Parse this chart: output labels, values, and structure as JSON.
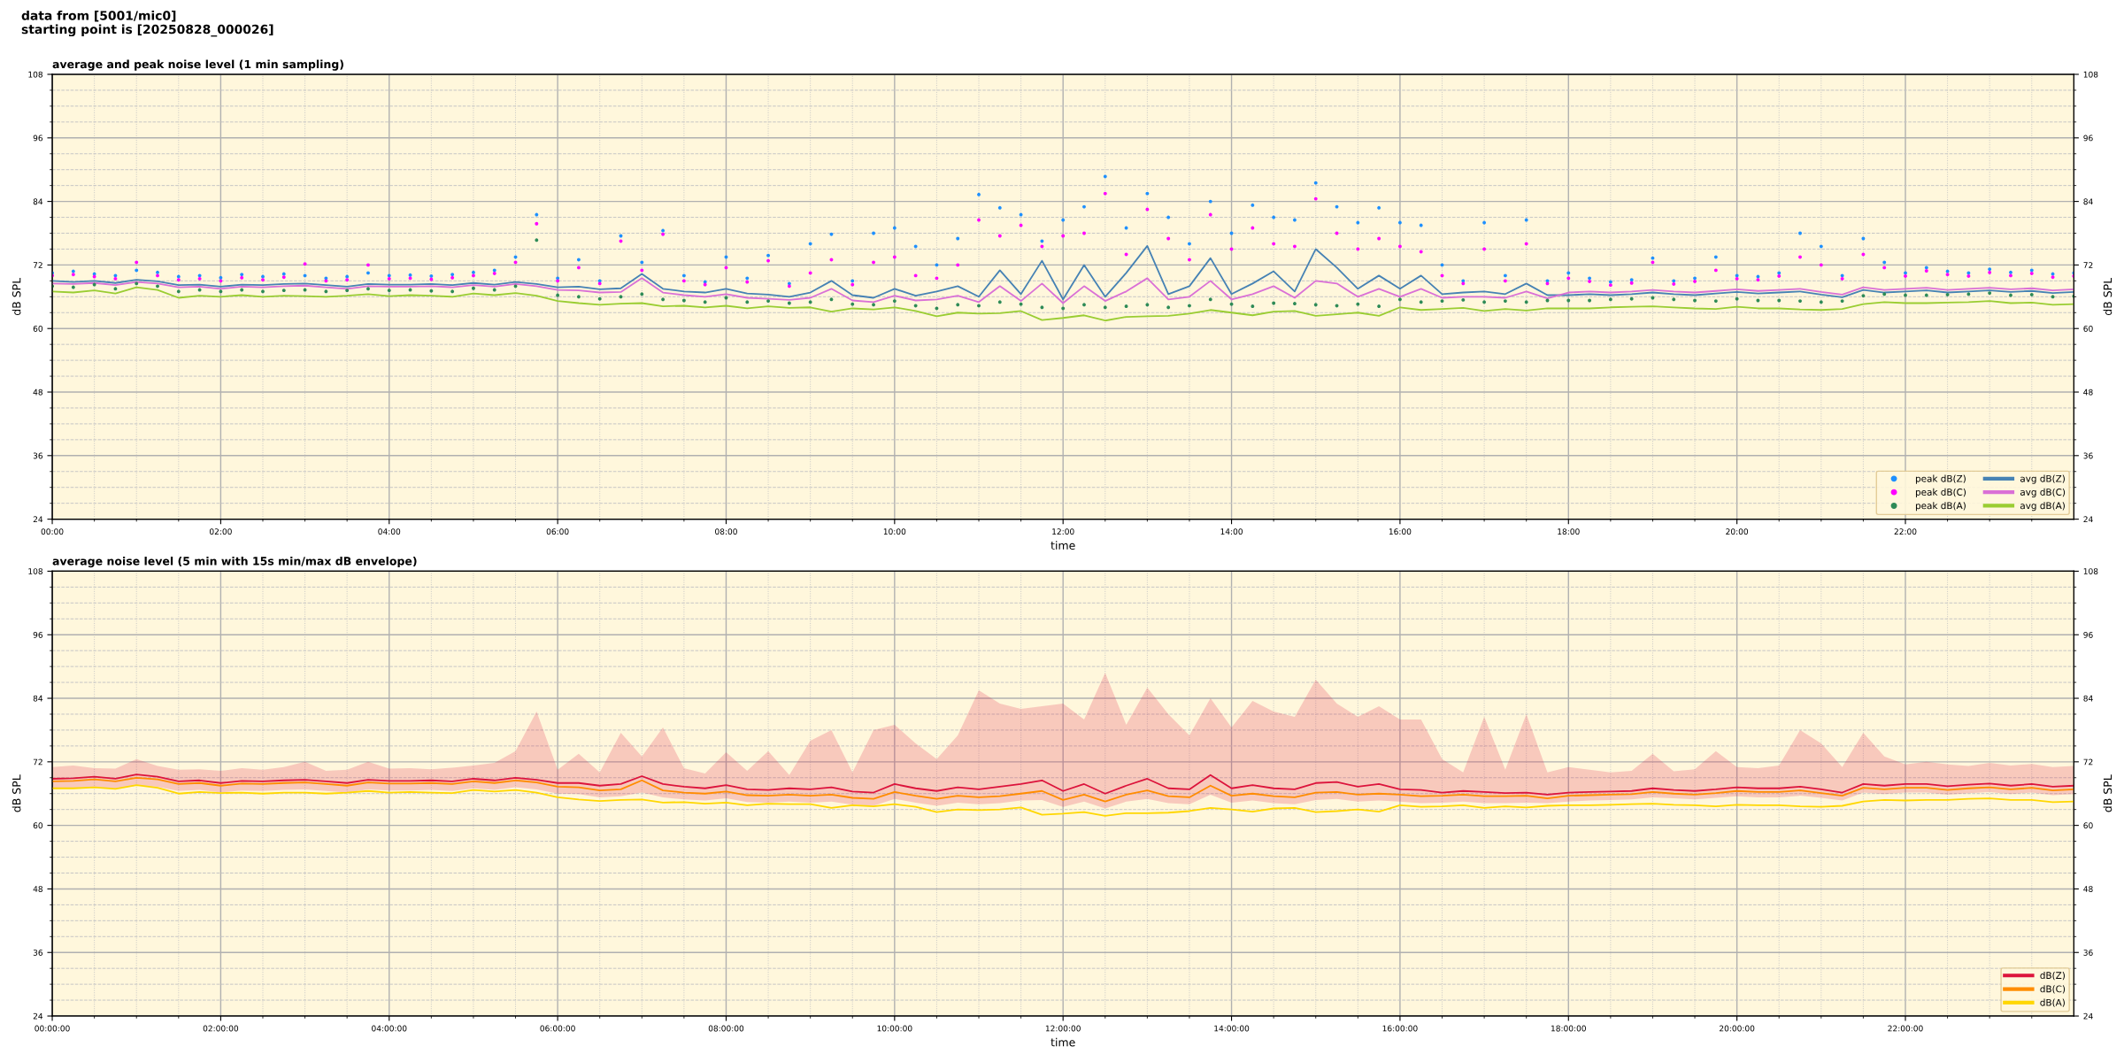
{
  "chart_data": [
    {
      "type": "line",
      "title": "average and peak noise level (1 min sampling)",
      "annotations": [
        "data from [5001/mic0]\nstarting point is [20250828_000026]"
      ],
      "xlabel": "time",
      "ylabel": "dB SPL",
      "y2label": "dB SPL",
      "x": [
        0,
        0.25,
        0.5,
        0.75,
        1,
        1.25,
        1.5,
        1.75,
        2,
        2.25,
        2.5,
        2.75,
        3,
        3.25,
        3.5,
        3.75,
        4,
        4.25,
        4.5,
        4.75,
        5,
        5.25,
        5.5,
        5.75,
        6,
        6.25,
        6.5,
        6.75,
        7,
        7.25,
        7.5,
        7.75,
        8,
        8.25,
        8.5,
        8.75,
        9,
        9.25,
        9.5,
        9.75,
        10,
        10.25,
        10.5,
        10.75,
        11,
        11.25,
        11.5,
        11.75,
        12,
        12.25,
        12.5,
        12.75,
        13,
        13.25,
        13.5,
        13.75,
        14,
        14.25,
        14.5,
        14.75,
        15,
        15.25,
        15.5,
        15.75,
        16,
        16.25,
        16.5,
        16.75,
        17,
        17.25,
        17.5,
        17.75,
        18,
        18.25,
        18.5,
        18.75,
        19,
        19.25,
        19.5,
        19.75,
        20,
        20.25,
        20.5,
        20.75,
        21,
        21.25,
        21.5,
        21.75,
        22,
        22.25,
        22.5,
        22.75,
        23,
        23.25,
        23.5,
        23.75,
        24
      ],
      "xlim": [
        0,
        24
      ],
      "xticks": [
        {
          "value": 0,
          "label": "00:00"
        },
        {
          "value": 0.5,
          "label": null
        },
        {
          "value": 1,
          "label": null
        },
        {
          "value": 1.5,
          "label": null
        },
        {
          "value": 2,
          "label": "02:00"
        },
        {
          "value": 2.5,
          "label": null
        },
        {
          "value": 3,
          "label": null
        },
        {
          "value": 3.5,
          "label": null
        },
        {
          "value": 4,
          "label": "04:00"
        },
        {
          "value": 4.5,
          "label": null
        },
        {
          "value": 5,
          "label": null
        },
        {
          "value": 5.5,
          "label": null
        },
        {
          "value": 6,
          "label": "06:00"
        },
        {
          "value": 6.5,
          "label": null
        },
        {
          "value": 7,
          "label": null
        },
        {
          "value": 7.5,
          "label": null
        },
        {
          "value": 8,
          "label": "08:00"
        },
        {
          "value": 8.5,
          "label": null
        },
        {
          "value": 9,
          "label": null
        },
        {
          "value": 9.5,
          "label": null
        },
        {
          "value": 10,
          "label": "10:00"
        },
        {
          "value": 10.5,
          "label": null
        },
        {
          "value": 11,
          "label": null
        },
        {
          "value": 11.5,
          "label": null
        },
        {
          "value": 12,
          "label": "12:00"
        },
        {
          "value": 12.5,
          "label": null
        },
        {
          "value": 13,
          "label": null
        },
        {
          "value": 13.5,
          "label": null
        },
        {
          "value": 14,
          "label": "14:00"
        },
        {
          "value": 14.5,
          "label": null
        },
        {
          "value": 15,
          "label": null
        },
        {
          "value": 15.5,
          "label": null
        },
        {
          "value": 16,
          "label": "16:00"
        },
        {
          "value": 16.5,
          "label": null
        },
        {
          "value": 17,
          "label": null
        },
        {
          "value": 17.5,
          "label": null
        },
        {
          "value": 18,
          "label": "18:00"
        },
        {
          "value": 18.5,
          "label": null
        },
        {
          "value": 19,
          "label": null
        },
        {
          "value": 19.5,
          "label": null
        },
        {
          "value": 20,
          "label": "20:00"
        },
        {
          "value": 20.5,
          "label": null
        },
        {
          "value": 21,
          "label": null
        },
        {
          "value": 21.5,
          "label": null
        },
        {
          "value": 22,
          "label": "22:00"
        },
        {
          "value": 22.5,
          "label": null
        },
        {
          "value": 23,
          "label": null
        },
        {
          "value": 23.5,
          "label": null
        }
      ],
      "ylim": [
        24,
        108
      ],
      "yticks": [
        24,
        {
          "value": 27,
          "label": null
        },
        {
          "value": 30,
          "label": null
        },
        {
          "value": 33,
          "label": null
        },
        36,
        {
          "value": 39,
          "label": null
        },
        {
          "value": 42,
          "label": null
        },
        {
          "value": 45,
          "label": null
        },
        48,
        {
          "value": 51,
          "label": null
        },
        {
          "value": 54,
          "label": null
        },
        {
          "value": 57,
          "label": null
        },
        60,
        {
          "value": 63,
          "label": null
        },
        {
          "value": 66,
          "label": null
        },
        {
          "value": 69,
          "label": null
        },
        72,
        {
          "value": 75,
          "label": null
        },
        {
          "value": 78,
          "label": null
        },
        {
          "value": 81,
          "label": null
        },
        84,
        {
          "value": 87,
          "label": null
        },
        {
          "value": 90,
          "label": null
        },
        {
          "value": 93,
          "label": null
        },
        96,
        {
          "value": 99,
          "label": null
        },
        {
          "value": 102,
          "label": null
        },
        {
          "value": 105,
          "label": null
        },
        108
      ],
      "y2lim": [
        24,
        108
      ],
      "y2ticks": [
        24,
        {
          "value": 27,
          "label": null
        },
        {
          "value": 30,
          "label": null
        },
        {
          "value": 33,
          "label": null
        },
        36,
        {
          "value": 39,
          "label": null
        },
        {
          "value": 42,
          "label": null
        },
        {
          "value": 45,
          "label": null
        },
        48,
        {
          "value": 51,
          "label": null
        },
        {
          "value": 54,
          "label": null
        },
        {
          "value": 57,
          "label": null
        },
        60,
        {
          "value": 63,
          "label": null
        },
        {
          "value": 66,
          "label": null
        },
        {
          "value": 69,
          "label": null
        },
        72,
        {
          "value": 75,
          "label": null
        },
        {
          "value": 78,
          "label": null
        },
        {
          "value": 81,
          "label": null
        },
        84,
        {
          "value": 87,
          "label": null
        },
        {
          "value": 90,
          "label": null
        },
        {
          "value": 93,
          "label": null
        },
        96,
        {
          "value": 99,
          "label": null
        },
        {
          "value": 102,
          "label": null
        },
        {
          "value": 105,
          "label": null
        },
        108
      ],
      "grid": true,
      "legend": "bottom right",
      "series": [
        {
          "name": "peak dB(Z)",
          "type": "scatter",
          "marker": "circle",
          "color": "#1e90ff",
          "values": [
            70.5,
            70.8,
            70.3,
            70.0,
            71.0,
            70.6,
            69.8,
            70.0,
            69.6,
            70.2,
            69.8,
            70.3,
            70.0,
            69.5,
            69.8,
            70.5,
            70.0,
            70.1,
            69.9,
            70.2,
            70.6,
            71.0,
            73.5,
            81.5,
            69.5,
            73.0,
            69.0,
            77.5,
            72.5,
            78.5,
            70.0,
            68.8,
            73.5,
            69.5,
            73.8,
            68.5,
            76.0,
            77.8,
            69.0,
            78.0,
            79.0,
            75.5,
            72.0,
            77.0,
            85.3,
            82.8,
            81.5,
            76.5,
            80.5,
            83.0,
            88.7,
            79.0,
            85.5,
            81.0,
            76.0,
            84.0,
            78.0,
            83.3,
            81.0,
            80.5,
            87.5,
            83.0,
            80.0,
            82.8,
            80.0,
            79.5,
            72.0,
            69.0,
            80.0,
            70.0,
            80.5,
            69.0,
            70.5,
            69.5,
            68.8,
            69.2,
            73.3,
            69.0,
            69.5,
            73.5,
            70.0,
            69.8,
            70.5,
            78.0,
            75.5,
            70.0,
            77.0,
            72.5,
            70.5,
            71.5,
            70.8,
            70.5,
            71.2,
            70.6,
            71.0,
            70.3,
            70.5
          ]
        },
        {
          "name": "peak dB(C)",
          "type": "scatter",
          "marker": "circle",
          "color": "#ff00ff",
          "values": [
            70.0,
            70.2,
            69.8,
            69.4,
            72.5,
            70.0,
            69.2,
            69.4,
            69.0,
            69.6,
            69.2,
            69.7,
            72.2,
            69.0,
            69.2,
            72.0,
            69.4,
            69.5,
            69.3,
            69.6,
            70.0,
            70.4,
            72.5,
            79.8,
            69.0,
            71.5,
            68.5,
            76.5,
            71.0,
            77.8,
            69.0,
            68.3,
            71.5,
            68.8,
            72.8,
            68.0,
            70.5,
            73.0,
            68.3,
            72.5,
            73.5,
            70.0,
            69.5,
            72.0,
            80.5,
            77.5,
            79.5,
            75.5,
            77.5,
            78.0,
            85.5,
            74.0,
            82.5,
            77.0,
            73.0,
            81.5,
            75.0,
            79.0,
            76.0,
            75.5,
            84.5,
            78.0,
            75.0,
            77.0,
            75.5,
            74.5,
            70.0,
            68.5,
            75.0,
            69.0,
            76.0,
            68.5,
            69.5,
            68.9,
            68.2,
            68.6,
            72.5,
            68.4,
            68.9,
            71.0,
            69.4,
            69.2,
            69.9,
            73.5,
            72.0,
            69.4,
            74.0,
            71.5,
            69.9,
            70.9,
            70.2,
            69.9,
            70.6,
            70.0,
            70.4,
            69.7,
            69.9
          ]
        },
        {
          "name": "peak dB(A)",
          "type": "scatter",
          "marker": "circle",
          "color": "#2e8b57",
          "values": [
            68.0,
            67.8,
            68.3,
            67.5,
            68.5,
            68.0,
            67.0,
            67.3,
            67.0,
            67.3,
            67.0,
            67.2,
            67.3,
            67.0,
            67.2,
            67.5,
            67.2,
            67.3,
            67.1,
            67.0,
            67.6,
            67.3,
            68.0,
            76.7,
            66.3,
            66.0,
            65.6,
            66.0,
            66.5,
            65.5,
            65.3,
            65.0,
            65.8,
            65.0,
            65.2,
            64.8,
            65.0,
            65.5,
            64.6,
            64.5,
            65.2,
            64.3,
            63.8,
            64.5,
            64.3,
            65.0,
            64.6,
            64.0,
            63.8,
            64.5,
            64.0,
            64.2,
            64.5,
            64.0,
            64.3,
            65.5,
            64.6,
            64.2,
            64.8,
            64.7,
            64.5,
            64.3,
            64.6,
            64.2,
            65.5,
            65.0,
            65.2,
            65.4,
            65.0,
            65.2,
            65.0,
            65.3,
            65.3,
            65.3,
            65.5,
            65.6,
            65.8,
            65.5,
            65.3,
            65.2,
            65.6,
            65.3,
            65.3,
            65.2,
            65.0,
            65.2,
            66.2,
            66.5,
            66.3,
            66.3,
            66.4,
            66.5,
            66.7,
            66.3,
            66.4,
            66.0,
            66.1
          ]
        },
        {
          "name": "avg dB(Z)",
          "type": "line",
          "color": "#4682b4",
          "values": [
            69.0,
            68.8,
            69.0,
            68.6,
            69.2,
            68.9,
            68.2,
            68.3,
            67.9,
            68.3,
            68.2,
            68.4,
            68.5,
            68.2,
            67.9,
            68.4,
            68.3,
            68.3,
            68.4,
            68.2,
            68.6,
            68.3,
            68.8,
            68.4,
            67.8,
            67.9,
            67.4,
            67.6,
            70.3,
            67.5,
            67.0,
            66.8,
            67.5,
            66.6,
            66.4,
            66.0,
            66.8,
            69.0,
            66.3,
            65.8,
            67.5,
            66.2,
            67.0,
            68.0,
            66.0,
            71.0,
            66.5,
            72.8,
            65.5,
            72.0,
            66.0,
            70.5,
            75.6,
            66.5,
            68.0,
            73.3,
            66.5,
            68.5,
            70.8,
            67.0,
            75.0,
            71.5,
            67.5,
            70.0,
            67.5,
            70.0,
            66.5,
            66.8,
            67.0,
            66.5,
            68.5,
            66.3,
            66.3,
            66.5,
            66.3,
            66.5,
            66.8,
            66.5,
            66.3,
            66.6,
            66.9,
            66.6,
            66.8,
            67.0,
            66.4,
            65.9,
            67.3,
            66.8,
            67.0,
            67.2,
            66.8,
            67.0,
            67.2,
            66.9,
            67.1,
            66.7,
            66.9
          ]
        },
        {
          "name": "avg dB(C)",
          "type": "line",
          "color": "#da70d6",
          "values": [
            68.5,
            68.4,
            68.6,
            68.2,
            68.8,
            68.5,
            67.8,
            67.9,
            67.5,
            67.9,
            67.8,
            68.0,
            68.1,
            67.8,
            67.5,
            68.0,
            67.9,
            67.9,
            68.0,
            67.8,
            68.2,
            67.9,
            68.4,
            68.0,
            67.3,
            67.2,
            66.8,
            66.9,
            69.5,
            66.8,
            66.3,
            66.0,
            66.5,
            65.8,
            65.6,
            65.4,
            65.8,
            67.5,
            65.3,
            65.0,
            66.2,
            65.3,
            65.5,
            66.2,
            65.0,
            68.0,
            65.2,
            68.5,
            64.8,
            68.0,
            65.2,
            67.0,
            69.5,
            65.5,
            66.0,
            69.0,
            65.5,
            66.5,
            68.0,
            65.8,
            69.0,
            68.5,
            66.0,
            67.5,
            66.0,
            67.5,
            65.8,
            66.0,
            66.0,
            65.8,
            67.0,
            65.7,
            66.8,
            67.0,
            66.8,
            67.0,
            67.3,
            67.0,
            66.8,
            67.1,
            67.4,
            67.1,
            67.3,
            67.5,
            66.9,
            66.4,
            67.8,
            67.3,
            67.5,
            67.7,
            67.3,
            67.5,
            67.7,
            67.4,
            67.6,
            67.2,
            67.4
          ]
        },
        {
          "name": "avg dB(A)",
          "type": "line",
          "color": "#9acd32",
          "values": [
            67.0,
            66.8,
            67.2,
            66.6,
            67.8,
            67.3,
            65.8,
            66.2,
            66.0,
            66.3,
            66.0,
            66.2,
            66.1,
            66.0,
            66.2,
            66.5,
            66.1,
            66.3,
            66.2,
            66.0,
            66.6,
            66.3,
            66.7,
            66.2,
            65.2,
            64.8,
            64.5,
            64.7,
            64.8,
            64.2,
            64.3,
            64.0,
            64.3,
            63.8,
            64.2,
            63.9,
            64.0,
            63.2,
            63.8,
            63.6,
            64.0,
            63.3,
            62.3,
            63.0,
            62.8,
            62.9,
            63.3,
            61.6,
            62.0,
            62.5,
            61.5,
            62.2,
            62.3,
            62.4,
            62.8,
            63.5,
            63.0,
            62.5,
            63.2,
            63.3,
            62.4,
            62.7,
            63.0,
            62.4,
            64.0,
            63.5,
            63.7,
            63.9,
            63.3,
            63.7,
            63.4,
            63.8,
            63.8,
            63.8,
            64.0,
            64.1,
            64.2,
            64.0,
            63.8,
            63.7,
            64.1,
            63.8,
            63.8,
            63.6,
            63.5,
            63.7,
            64.6,
            65.0,
            64.8,
            64.8,
            64.9,
            65.0,
            65.2,
            64.8,
            64.9,
            64.5,
            64.6
          ]
        }
      ]
    },
    {
      "type": "line",
      "title": "average noise level (5 min with 15s min/max dB envelope)",
      "xlabel": "time",
      "ylabel": "dB SPL",
      "y2label": "dB SPL",
      "x": [
        0,
        0.25,
        0.5,
        0.75,
        1,
        1.25,
        1.5,
        1.75,
        2,
        2.25,
        2.5,
        2.75,
        3,
        3.25,
        3.5,
        3.75,
        4,
        4.25,
        4.5,
        4.75,
        5,
        5.25,
        5.5,
        5.75,
        6,
        6.25,
        6.5,
        6.75,
        7,
        7.25,
        7.5,
        7.75,
        8,
        8.25,
        8.5,
        8.75,
        9,
        9.25,
        9.5,
        9.75,
        10,
        10.25,
        10.5,
        10.75,
        11,
        11.25,
        11.5,
        11.75,
        12,
        12.25,
        12.5,
        12.75,
        13,
        13.25,
        13.5,
        13.75,
        14,
        14.25,
        14.5,
        14.75,
        15,
        15.25,
        15.5,
        15.75,
        16,
        16.25,
        16.5,
        16.75,
        17,
        17.25,
        17.5,
        17.75,
        18,
        18.25,
        18.5,
        18.75,
        19,
        19.25,
        19.5,
        19.75,
        20,
        20.25,
        20.5,
        20.75,
        21,
        21.25,
        21.5,
        21.75,
        22,
        22.25,
        22.5,
        22.75,
        23,
        23.25,
        23.5,
        23.75,
        24
      ],
      "xlim": [
        0,
        24
      ],
      "xticks": [
        {
          "value": 0,
          "label": "00:00:00"
        },
        {
          "value": 0.5,
          "label": null
        },
        {
          "value": 1,
          "label": null
        },
        {
          "value": 1.5,
          "label": null
        },
        {
          "value": 2,
          "label": "02:00:00"
        },
        {
          "value": 2.5,
          "label": null
        },
        {
          "value": 3,
          "label": null
        },
        {
          "value": 3.5,
          "label": null
        },
        {
          "value": 4,
          "label": "04:00:00"
        },
        {
          "value": 4.5,
          "label": null
        },
        {
          "value": 5,
          "label": null
        },
        {
          "value": 5.5,
          "label": null
        },
        {
          "value": 6,
          "label": "06:00:00"
        },
        {
          "value": 6.5,
          "label": null
        },
        {
          "value": 7,
          "label": null
        },
        {
          "value": 7.5,
          "label": null
        },
        {
          "value": 8,
          "label": "08:00:00"
        },
        {
          "value": 8.5,
          "label": null
        },
        {
          "value": 9,
          "label": null
        },
        {
          "value": 9.5,
          "label": null
        },
        {
          "value": 10,
          "label": "10:00:00"
        },
        {
          "value": 10.5,
          "label": null
        },
        {
          "value": 11,
          "label": null
        },
        {
          "value": 11.5,
          "label": null
        },
        {
          "value": 12,
          "label": "12:00:00"
        },
        {
          "value": 12.5,
          "label": null
        },
        {
          "value": 13,
          "label": null
        },
        {
          "value": 13.5,
          "label": null
        },
        {
          "value": 14,
          "label": "14:00:00"
        },
        {
          "value": 14.5,
          "label": null
        },
        {
          "value": 15,
          "label": null
        },
        {
          "value": 15.5,
          "label": null
        },
        {
          "value": 16,
          "label": "16:00:00"
        },
        {
          "value": 16.5,
          "label": null
        },
        {
          "value": 17,
          "label": null
        },
        {
          "value": 17.5,
          "label": null
        },
        {
          "value": 18,
          "label": "18:00:00"
        },
        {
          "value": 18.5,
          "label": null
        },
        {
          "value": 19,
          "label": null
        },
        {
          "value": 19.5,
          "label": null
        },
        {
          "value": 20,
          "label": "20:00:00"
        },
        {
          "value": 20.5,
          "label": null
        },
        {
          "value": 21,
          "label": null
        },
        {
          "value": 21.5,
          "label": null
        },
        {
          "value": 22,
          "label": "22:00:00"
        },
        {
          "value": 22.5,
          "label": null
        },
        {
          "value": 23,
          "label": null
        },
        {
          "value": 23.5,
          "label": null
        }
      ],
      "ylim": [
        24,
        108
      ],
      "yticks": [
        24,
        {
          "value": 27,
          "label": null
        },
        {
          "value": 30,
          "label": null
        },
        {
          "value": 33,
          "label": null
        },
        36,
        {
          "value": 39,
          "label": null
        },
        {
          "value": 42,
          "label": null
        },
        {
          "value": 45,
          "label": null
        },
        48,
        {
          "value": 51,
          "label": null
        },
        {
          "value": 54,
          "label": null
        },
        {
          "value": 57,
          "label": null
        },
        60,
        {
          "value": 63,
          "label": null
        },
        {
          "value": 66,
          "label": null
        },
        {
          "value": 69,
          "label": null
        },
        72,
        {
          "value": 75,
          "label": null
        },
        {
          "value": 78,
          "label": null
        },
        {
          "value": 81,
          "label": null
        },
        84,
        {
          "value": 87,
          "label": null
        },
        {
          "value": 90,
          "label": null
        },
        {
          "value": 93,
          "label": null
        },
        96,
        {
          "value": 99,
          "label": null
        },
        {
          "value": 102,
          "label": null
        },
        {
          "value": 105,
          "label": null
        },
        108
      ],
      "y2lim": [
        24,
        108
      ],
      "y2ticks": [
        24,
        {
          "value": 27,
          "label": null
        },
        {
          "value": 30,
          "label": null
        },
        {
          "value": 33,
          "label": null
        },
        36,
        {
          "value": 39,
          "label": null
        },
        {
          "value": 42,
          "label": null
        },
        {
          "value": 45,
          "label": null
        },
        48,
        {
          "value": 51,
          "label": null
        },
        {
          "value": 54,
          "label": null
        },
        {
          "value": 57,
          "label": null
        },
        60,
        {
          "value": 63,
          "label": null
        },
        {
          "value": 66,
          "label": null
        },
        {
          "value": 69,
          "label": null
        },
        72,
        {
          "value": 75,
          "label": null
        },
        {
          "value": 78,
          "label": null
        },
        {
          "value": 81,
          "label": null
        },
        84,
        {
          "value": 87,
          "label": null
        },
        {
          "value": 90,
          "label": null
        },
        {
          "value": 93,
          "label": null
        },
        96,
        {
          "value": 99,
          "label": null
        },
        {
          "value": 102,
          "label": null
        },
        {
          "value": 105,
          "label": null
        },
        108
      ],
      "grid": true,
      "legend": "bottom right",
      "series": [
        {
          "name": "dB(Z)",
          "color": "#dc143c",
          "values": [
            68.8,
            68.9,
            69.2,
            68.8,
            69.6,
            69.2,
            68.3,
            68.5,
            68.0,
            68.4,
            68.3,
            68.5,
            68.6,
            68.3,
            68.0,
            68.6,
            68.4,
            68.4,
            68.5,
            68.3,
            68.8,
            68.5,
            69.0,
            68.6,
            68.0,
            68.0,
            67.5,
            67.8,
            69.3,
            67.8,
            67.3,
            67.0,
            67.6,
            66.8,
            66.7,
            67.0,
            66.8,
            67.2,
            66.4,
            66.2,
            67.8,
            67.0,
            66.5,
            67.2,
            66.8,
            67.3,
            67.8,
            68.5,
            66.5,
            67.8,
            66.0,
            67.5,
            68.8,
            67.0,
            66.8,
            69.5,
            67.0,
            67.6,
            67.0,
            66.8,
            68.0,
            68.2,
            67.3,
            67.8,
            66.8,
            66.7,
            66.2,
            66.5,
            66.3,
            66.1,
            66.2,
            65.8,
            66.2,
            66.3,
            66.4,
            66.5,
            67.0,
            66.7,
            66.5,
            66.8,
            67.2,
            67.0,
            67.0,
            67.3,
            66.8,
            66.2,
            67.8,
            67.5,
            67.8,
            67.8,
            67.4,
            67.7,
            67.9,
            67.5,
            67.8,
            67.3,
            67.5
          ],
          "lower": [
            67.0,
            67.1,
            67.3,
            66.9,
            67.5,
            67.3,
            66.5,
            66.7,
            66.2,
            66.6,
            66.5,
            66.7,
            66.8,
            66.5,
            66.2,
            66.8,
            66.6,
            66.6,
            66.7,
            66.5,
            67.0,
            66.7,
            67.2,
            66.8,
            66.0,
            65.9,
            65.3,
            65.5,
            66.2,
            65.3,
            64.9,
            64.7,
            65.1,
            64.4,
            64.3,
            64.5,
            64.3,
            64.5,
            63.9,
            63.7,
            65.0,
            64.3,
            63.7,
            64.3,
            64.0,
            64.2,
            64.7,
            64.8,
            63.5,
            64.5,
            63.2,
            64.5,
            65.0,
            64.2,
            64.0,
            65.8,
            64.3,
            64.7,
            64.2,
            64.0,
            64.8,
            65.0,
            64.5,
            64.7,
            64.5,
            64.2,
            64.3,
            64.5,
            64.2,
            64.2,
            64.3,
            64.2,
            64.5,
            64.7,
            64.8,
            64.9,
            65.3,
            65.1,
            64.9,
            65.2,
            65.5,
            65.3,
            65.3,
            65.6,
            65.2,
            64.7,
            66.2,
            65.9,
            66.2,
            66.2,
            65.8,
            66.1,
            66.3,
            65.9,
            66.2,
            65.7,
            65.9
          ],
          "upper": [
            71.0,
            71.3,
            70.8,
            70.7,
            72.5,
            71.2,
            70.5,
            70.6,
            70.3,
            70.8,
            70.5,
            71.0,
            72.0,
            70.3,
            70.5,
            72.0,
            70.7,
            70.8,
            70.6,
            70.9,
            71.3,
            71.8,
            74.0,
            81.5,
            70.5,
            73.5,
            70.0,
            77.5,
            73.0,
            78.5,
            70.8,
            69.8,
            73.8,
            70.3,
            74.0,
            69.5,
            76.0,
            78.0,
            70.0,
            78.0,
            79.0,
            75.5,
            72.5,
            77.0,
            85.5,
            83.0,
            82.0,
            82.5,
            83.0,
            80.0,
            88.8,
            79.0,
            86.0,
            81.0,
            77.0,
            84.0,
            78.5,
            83.5,
            81.5,
            80.5,
            87.5,
            83.0,
            80.5,
            82.5,
            80.0,
            80.0,
            72.5,
            70.0,
            80.5,
            70.5,
            81.0,
            70.0,
            71.0,
            70.5,
            70.0,
            70.3,
            73.5,
            70.2,
            70.6,
            74.0,
            71.0,
            70.8,
            71.3,
            78.0,
            75.5,
            71.0,
            77.5,
            73.0,
            71.5,
            72.0,
            71.5,
            71.2,
            71.8,
            71.3,
            71.6,
            71.0,
            71.2
          ]
        },
        {
          "name": "dB(C)",
          "color": "#ff8c00",
          "values": [
            68.3,
            68.4,
            68.7,
            68.3,
            69.0,
            68.7,
            67.8,
            68.0,
            67.5,
            67.9,
            67.8,
            68.0,
            68.1,
            67.8,
            67.5,
            68.1,
            67.9,
            67.9,
            68.0,
            67.8,
            68.3,
            68.0,
            68.5,
            68.1,
            67.3,
            67.2,
            66.6,
            66.8,
            68.5,
            66.6,
            66.2,
            66.0,
            66.4,
            65.7,
            65.6,
            65.8,
            65.6,
            65.8,
            65.2,
            65.0,
            66.3,
            65.6,
            65.0,
            65.6,
            65.3,
            65.5,
            66.0,
            66.5,
            64.8,
            65.8,
            64.5,
            65.8,
            66.6,
            65.5,
            65.3,
            67.5,
            65.6,
            66.0,
            65.5,
            65.3,
            66.2,
            66.3,
            65.8,
            66.0,
            65.8,
            65.5,
            65.6,
            65.8,
            65.5,
            65.5,
            65.6,
            65.1,
            65.6,
            65.7,
            65.8,
            65.9,
            66.3,
            66.0,
            65.8,
            66.1,
            66.5,
            66.3,
            66.3,
            66.6,
            66.1,
            65.6,
            67.1,
            66.8,
            67.1,
            67.1,
            66.7,
            67.0,
            67.2,
            66.8,
            67.1,
            66.6,
            66.8
          ]
        },
        {
          "name": "dB(A)",
          "color": "#ffd700",
          "values": [
            67.0,
            67.0,
            67.2,
            66.9,
            67.6,
            67.1,
            66.0,
            66.3,
            66.1,
            66.2,
            66.0,
            66.2,
            66.2,
            66.0,
            66.2,
            66.5,
            66.2,
            66.3,
            66.2,
            66.1,
            66.7,
            66.4,
            66.7,
            66.2,
            65.3,
            64.9,
            64.6,
            64.8,
            64.9,
            64.3,
            64.4,
            64.1,
            64.3,
            63.8,
            64.1,
            64.0,
            64.0,
            63.3,
            63.8,
            63.6,
            64.0,
            63.5,
            62.5,
            63.0,
            62.9,
            63.0,
            63.4,
            62.0,
            62.2,
            62.5,
            61.8,
            62.3,
            62.3,
            62.4,
            62.7,
            63.3,
            63.0,
            62.6,
            63.2,
            63.3,
            62.5,
            62.7,
            63.0,
            62.6,
            63.8,
            63.5,
            63.6,
            63.8,
            63.3,
            63.6,
            63.4,
            63.7,
            63.8,
            63.8,
            63.9,
            64.0,
            64.1,
            63.9,
            63.8,
            63.6,
            63.9,
            63.8,
            63.8,
            63.6,
            63.5,
            63.7,
            64.5,
            64.8,
            64.7,
            64.8,
            64.8,
            65.0,
            65.1,
            64.8,
            64.8,
            64.4,
            64.5
          ]
        }
      ]
    }
  ]
}
